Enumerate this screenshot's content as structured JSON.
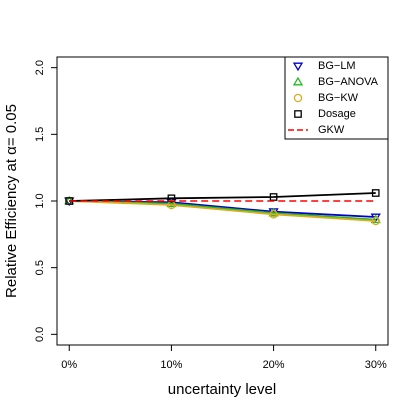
{
  "chart_data": {
    "type": "line",
    "x_label": "uncertainty level",
    "y_label": "Relative Efficiency at  α= 0.05",
    "x": [
      0,
      10,
      20,
      30
    ],
    "xlim": [
      -1.2,
      31.2
    ],
    "xticks": [
      {
        "value": 0,
        "label": "0%"
      },
      {
        "value": 10,
        "label": "10%"
      },
      {
        "value": 20,
        "label": "20%"
      },
      {
        "value": 30,
        "label": "30%"
      }
    ],
    "ylim": [
      -0.08,
      2.08
    ],
    "yticks": [
      {
        "value": 0,
        "label": "0.0"
      },
      {
        "value": 0.5,
        "label": "0.5"
      },
      {
        "value": 1,
        "label": "1.0"
      },
      {
        "value": 1.5,
        "label": "1.5"
      },
      {
        "value": 2,
        "label": "2.0"
      }
    ],
    "legend_position": "top-right",
    "series": [
      {
        "name": "BG−LM",
        "color": "#0000cc",
        "marker": "triangle-down",
        "linestyle": "solid",
        "values": [
          1.0,
          0.99,
          0.92,
          0.88
        ]
      },
      {
        "name": "BG−ANOVA",
        "color": "#22bb22",
        "marker": "triangle-up",
        "linestyle": "solid",
        "values": [
          1.0,
          0.98,
          0.91,
          0.86
        ]
      },
      {
        "name": "BG−KW",
        "color": "#ddaa22",
        "marker": "circle",
        "linestyle": "solid",
        "values": [
          1.0,
          0.97,
          0.9,
          0.85
        ]
      },
      {
        "name": "Dosage",
        "color": "#000000",
        "marker": "square",
        "linestyle": "solid",
        "values": [
          1.0,
          1.02,
          1.03,
          1.06
        ]
      },
      {
        "name": "GKW",
        "color": "#ff0000",
        "marker": "none",
        "linestyle": "dashed",
        "values": [
          1.0,
          1.0,
          1.0,
          1.0
        ]
      }
    ]
  }
}
